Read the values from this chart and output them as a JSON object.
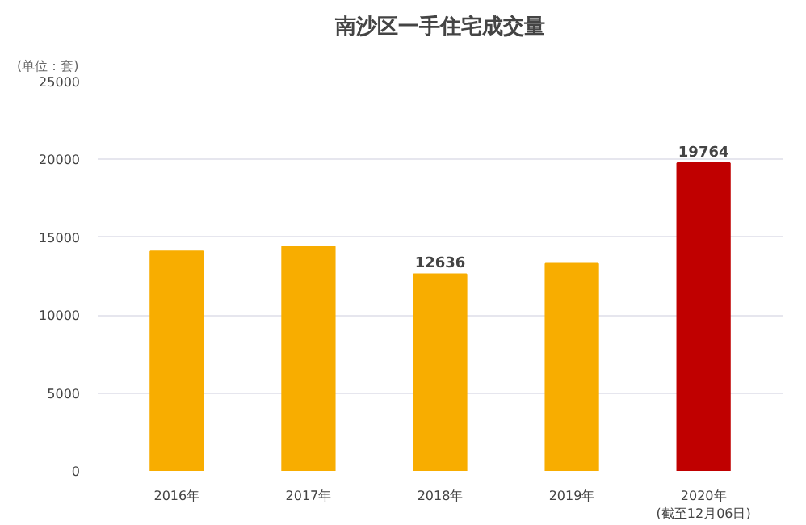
{
  "chart_data": {
    "type": "bar",
    "title": "南沙区一手住宅成交量",
    "ylabel": "(单位：套)",
    "categories": [
      "2016年",
      "2017年",
      "2018年",
      "2019年",
      "2020年\n(截至12月06日)"
    ],
    "values": [
      14100,
      14400,
      12636,
      13300,
      19764
    ],
    "colors": [
      "#f8ad00",
      "#f8ad00",
      "#f8ad00",
      "#f8ad00",
      "#c00000"
    ],
    "value_labels": [
      null,
      null,
      "12636",
      null,
      "19764"
    ],
    "ylim": [
      0,
      25000
    ],
    "yticks": [
      0,
      5000,
      10000,
      15000,
      20000,
      25000
    ],
    "grid": "y"
  }
}
